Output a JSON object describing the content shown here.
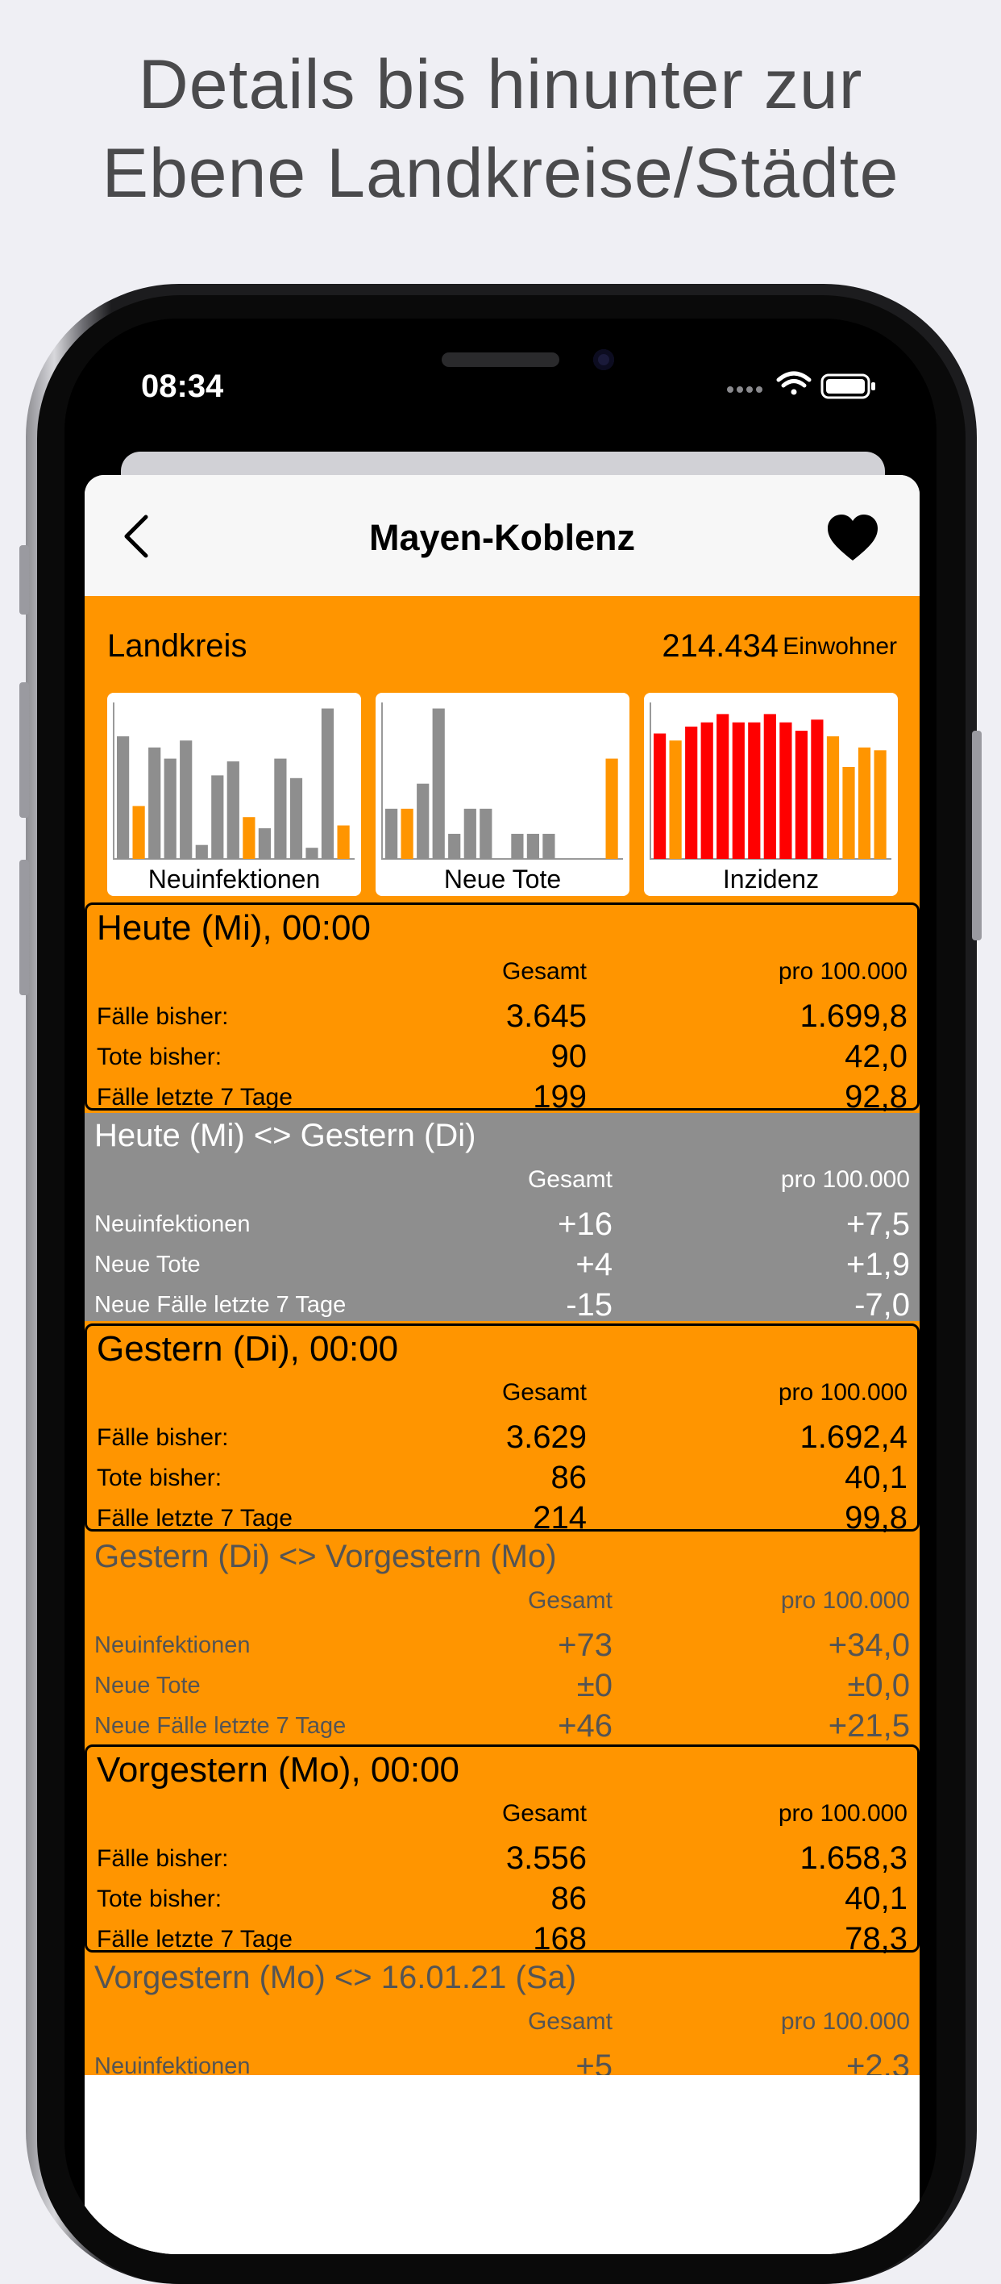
{
  "headline": {
    "line1": "Details bis hinunter zur",
    "line2": "Ebene Landkreise/Städte"
  },
  "status_bar": {
    "time": "08:34"
  },
  "nav": {
    "title": "Mayen-Koblenz",
    "back_icon": "chevron-left-icon",
    "favorite_icon": "heart-icon"
  },
  "colors": {
    "accent": "#ff9500",
    "gray_block": "#8e8e8e",
    "bar_gray": "#8e8e8e",
    "bar_red": "#ff0000"
  },
  "kreis": {
    "label": "Landkreis",
    "population": "214.434",
    "unit": "Einwohner"
  },
  "mini_charts": [
    {
      "label": "Neuinfektionen",
      "values": [
        88,
        38,
        80,
        72,
        85,
        10,
        60,
        70,
        30,
        22,
        72,
        58,
        8,
        108,
        24
      ],
      "highlight": [
        1,
        8,
        14
      ],
      "palette": "gray-orange"
    },
    {
      "label": "Neue Tote",
      "values": [
        36,
        36,
        54,
        108,
        18,
        36,
        36,
        0,
        18,
        18,
        18,
        0,
        0,
        0,
        72
      ],
      "highlight": [
        1,
        14
      ],
      "palette": "gray-orange"
    },
    {
      "label": "Inzidenz",
      "values": [
        90,
        85,
        95,
        98,
        104,
        98,
        98,
        104,
        98,
        92,
        100,
        88,
        66,
        80,
        78
      ],
      "highlight": [
        1,
        11,
        12,
        13,
        14
      ],
      "palette": "red-orange"
    }
  ],
  "blocks": [
    {
      "kind": "day",
      "title": "Heute (Mi), 00:00",
      "col1": "Gesamt",
      "col2": "pro 100.000",
      "rows": [
        {
          "label": "Fälle bisher:",
          "v1": "3.645",
          "v2": "1.699,8"
        },
        {
          "label": "Tote bisher:",
          "v1": "90",
          "v2": "42,0"
        },
        {
          "label": "Fälle letzte 7 Tage",
          "v1": "199",
          "v2": "92,8"
        }
      ]
    },
    {
      "kind": "diff-gray",
      "title": "Heute (Mi) <> Gestern (Di)",
      "col1": "Gesamt",
      "col2": "pro 100.000",
      "rows": [
        {
          "label": "Neuinfektionen",
          "v1": "+16",
          "v2": "+7,5"
        },
        {
          "label": "Neue Tote",
          "v1": "+4",
          "v2": "+1,9"
        },
        {
          "label": "Neue Fälle letzte 7 Tage",
          "v1": "-15",
          "v2": "-7,0"
        }
      ]
    },
    {
      "kind": "day",
      "title": "Gestern (Di), 00:00",
      "col1": "Gesamt",
      "col2": "pro 100.000",
      "rows": [
        {
          "label": "Fälle bisher:",
          "v1": "3.629",
          "v2": "1.692,4"
        },
        {
          "label": "Tote bisher:",
          "v1": "86",
          "v2": "40,1"
        },
        {
          "label": "Fälle letzte 7 Tage",
          "v1": "214",
          "v2": "99,8"
        }
      ]
    },
    {
      "kind": "diff-orange",
      "title": "Gestern (Di) <> Vorgestern (Mo)",
      "col1": "Gesamt",
      "col2": "pro 100.000",
      "rows": [
        {
          "label": "Neuinfektionen",
          "v1": "+73",
          "v2": "+34,0"
        },
        {
          "label": "Neue Tote",
          "v1": "±0",
          "v2": "±0,0"
        },
        {
          "label": "Neue Fälle letzte 7 Tage",
          "v1": "+46",
          "v2": "+21,5"
        }
      ]
    },
    {
      "kind": "day",
      "title": "Vorgestern (Mo), 00:00",
      "col1": "Gesamt",
      "col2": "pro 100.000",
      "rows": [
        {
          "label": "Fälle bisher:",
          "v1": "3.556",
          "v2": "1.658,3"
        },
        {
          "label": "Tote bisher:",
          "v1": "86",
          "v2": "40,1"
        },
        {
          "label": "Fälle letzte 7 Tage",
          "v1": "168",
          "v2": "78,3"
        }
      ]
    },
    {
      "kind": "diff-orange",
      "title": "Vorgestern (Mo) <> 16.01.21 (Sa)",
      "col1": "Gesamt",
      "col2": "pro 100.000",
      "rows": [
        {
          "label": "Neuinfektionen",
          "v1": "+5",
          "v2": "+2,3"
        }
      ]
    }
  ]
}
